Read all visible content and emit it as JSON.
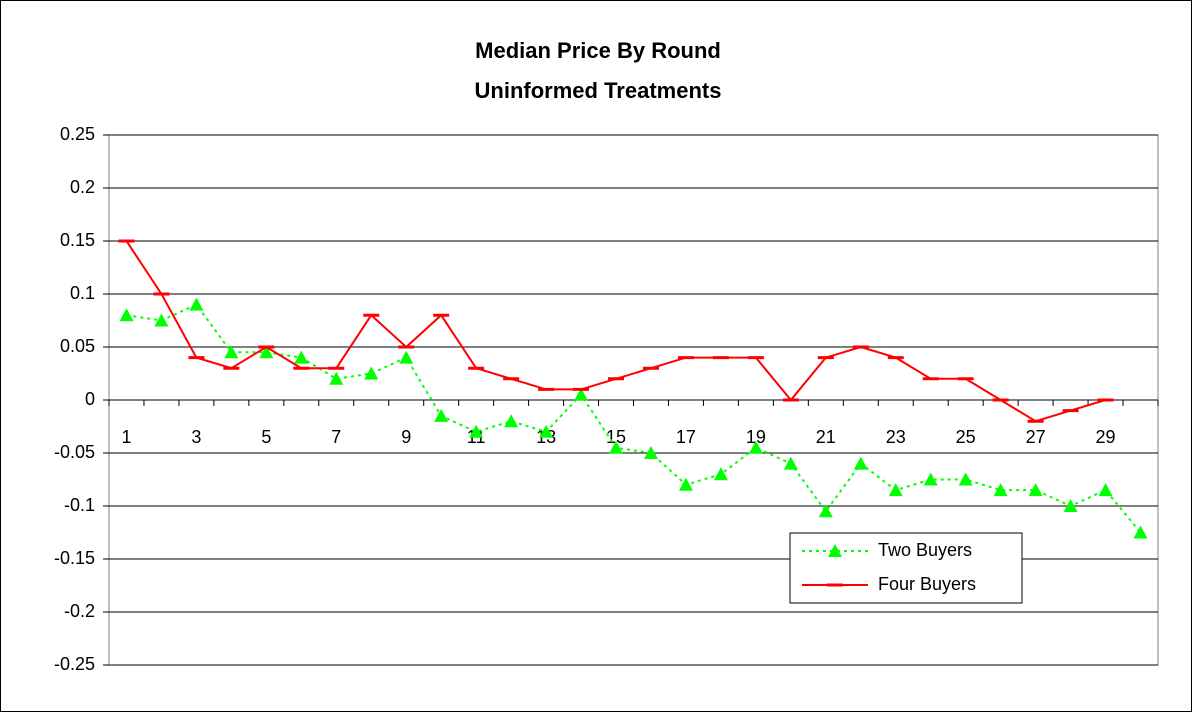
{
  "chart_data": {
    "type": "line",
    "title": "Median Price By Round",
    "subtitle": "Uninformed Treatments",
    "categories": [
      1,
      null,
      3,
      null,
      5,
      null,
      7,
      null,
      9,
      null,
      11,
      null,
      13,
      null,
      15,
      null,
      17,
      null,
      19,
      null,
      21,
      null,
      23,
      null,
      25,
      null,
      27,
      null,
      29,
      null
    ],
    "series": [
      {
        "name": "Two Buyers",
        "color": "#00ff00",
        "marker": "triangle",
        "dash": "dotted",
        "values": [
          0.08,
          0.075,
          0.09,
          0.045,
          0.045,
          0.04,
          0.02,
          0.025,
          0.04,
          -0.015,
          -0.03,
          -0.02,
          -0.03,
          0.005,
          -0.045,
          -0.05,
          -0.08,
          -0.07,
          -0.045,
          -0.06,
          -0.105,
          -0.06,
          -0.085,
          -0.075,
          -0.075,
          -0.085,
          -0.085,
          -0.1,
          -0.085,
          -0.125
        ]
      },
      {
        "name": "Four Buyers",
        "color": "#ff0000",
        "marker": "dash",
        "dash": "solid",
        "values": [
          0.15,
          0.1,
          0.04,
          0.03,
          0.05,
          0.03,
          0.03,
          0.08,
          0.05,
          0.08,
          0.03,
          0.02,
          0.01,
          0.01,
          0.02,
          0.03,
          0.04,
          0.04,
          0.04,
          0,
          0.04,
          0.05,
          0.04,
          0.02,
          0.02,
          0,
          -0.02,
          -0.01,
          0,
          null
        ]
      }
    ],
    "ylim": [
      -0.25,
      0.25
    ],
    "yticks": [
      0.25,
      0.2,
      0.15,
      0.1,
      0.05,
      0,
      -0.05,
      -0.1,
      -0.15,
      -0.2,
      -0.25
    ],
    "grid": true
  }
}
